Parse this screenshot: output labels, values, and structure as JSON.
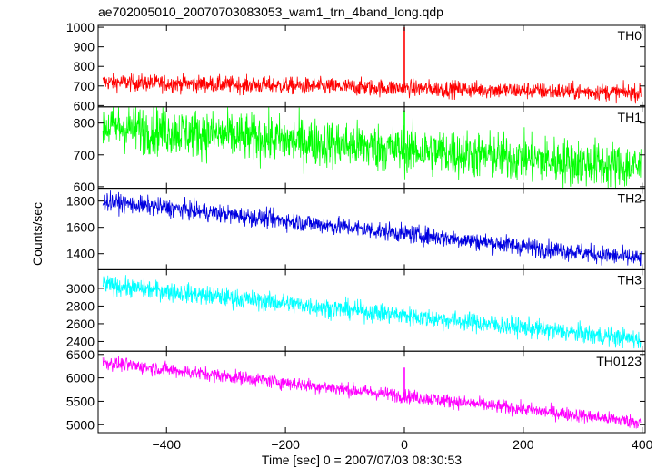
{
  "chart_data": {
    "type": "line",
    "title": "ae702005010_20070703083053_wam1_trn_4band_long.qdp",
    "xlabel": "Time [sec] 0 = 2007/07/03 08:30:53",
    "ylabel": "Counts/sec",
    "xlim": [
      -515,
      405
    ],
    "xticks": [
      -400,
      -200,
      0,
      200,
      400
    ],
    "grid": false,
    "series": [
      {
        "name": "TH0",
        "color": "#ff0000",
        "ylim": [
          598,
          1005
        ],
        "yticks": [
          600,
          700,
          800,
          900,
          1000
        ],
        "trend_start": 720,
        "trend_end": 665,
        "noise": 22,
        "spikes": [
          {
            "x": 0,
            "y": 1000
          }
        ],
        "points": [
          {
            "x": -500,
            "y": 720
          },
          {
            "x": -400,
            "y": 712
          },
          {
            "x": -300,
            "y": 703
          },
          {
            "x": -200,
            "y": 697
          },
          {
            "x": -100,
            "y": 690
          },
          {
            "x": 0,
            "y": 690
          },
          {
            "x": 100,
            "y": 683
          },
          {
            "x": 200,
            "y": 678
          },
          {
            "x": 300,
            "y": 672
          },
          {
            "x": 400,
            "y": 665
          }
        ]
      },
      {
        "name": "TH1",
        "color": "#00ff00",
        "ylim": [
          598,
          848
        ],
        "yticks": [
          600,
          700,
          800
        ],
        "trend_start": 790,
        "trend_end": 660,
        "noise": 38,
        "spikes": [
          {
            "x": 0,
            "y": 840
          }
        ],
        "points": [
          {
            "x": -500,
            "y": 790
          },
          {
            "x": -400,
            "y": 775
          },
          {
            "x": -300,
            "y": 758
          },
          {
            "x": -200,
            "y": 742
          },
          {
            "x": -100,
            "y": 727
          },
          {
            "x": 0,
            "y": 715
          },
          {
            "x": 100,
            "y": 700
          },
          {
            "x": 200,
            "y": 688
          },
          {
            "x": 300,
            "y": 672
          },
          {
            "x": 400,
            "y": 660
          }
        ]
      },
      {
        "name": "TH2",
        "color": "#0000e0",
        "ylim": [
          1285,
          1890
        ],
        "yticks": [
          1400,
          1600,
          1800
        ],
        "trend_start": 1800,
        "trend_end": 1360,
        "noise": 35,
        "spikes": [],
        "points": [
          {
            "x": -500,
            "y": 1800
          },
          {
            "x": -400,
            "y": 1760
          },
          {
            "x": -300,
            "y": 1710
          },
          {
            "x": -200,
            "y": 1660
          },
          {
            "x": -100,
            "y": 1610
          },
          {
            "x": 0,
            "y": 1570
          },
          {
            "x": 100,
            "y": 1520
          },
          {
            "x": 200,
            "y": 1470
          },
          {
            "x": 300,
            "y": 1410
          },
          {
            "x": 400,
            "y": 1360
          }
        ]
      },
      {
        "name": "TH3",
        "color": "#00ffff",
        "ylim": [
          2300,
          3200
        ],
        "yticks": [
          2400,
          2600,
          2800,
          3000
        ],
        "trend_start": 3040,
        "trend_end": 2420,
        "noise": 55,
        "spikes": [],
        "points": [
          {
            "x": -500,
            "y": 3040
          },
          {
            "x": -400,
            "y": 2960
          },
          {
            "x": -300,
            "y": 2890
          },
          {
            "x": -200,
            "y": 2820
          },
          {
            "x": -100,
            "y": 2760
          },
          {
            "x": 0,
            "y": 2700
          },
          {
            "x": 100,
            "y": 2630
          },
          {
            "x": 200,
            "y": 2560
          },
          {
            "x": 300,
            "y": 2490
          },
          {
            "x": 400,
            "y": 2420
          }
        ]
      },
      {
        "name": "TH0123",
        "color": "#ff00ff",
        "ylim": [
          4850,
          6550
        ],
        "yticks": [
          5000,
          5500,
          6000,
          6500
        ],
        "trend_start": 6330,
        "trend_end": 5050,
        "noise": 75,
        "spikes": [
          {
            "x": 0,
            "y": 6220
          }
        ],
        "points": [
          {
            "x": -500,
            "y": 6330
          },
          {
            "x": -400,
            "y": 6180
          },
          {
            "x": -300,
            "y": 6050
          },
          {
            "x": -200,
            "y": 5910
          },
          {
            "x": -100,
            "y": 5760
          },
          {
            "x": 0,
            "y": 5600
          },
          {
            "x": 100,
            "y": 5470
          },
          {
            "x": 200,
            "y": 5330
          },
          {
            "x": 300,
            "y": 5190
          },
          {
            "x": 400,
            "y": 5050
          }
        ]
      }
    ]
  }
}
